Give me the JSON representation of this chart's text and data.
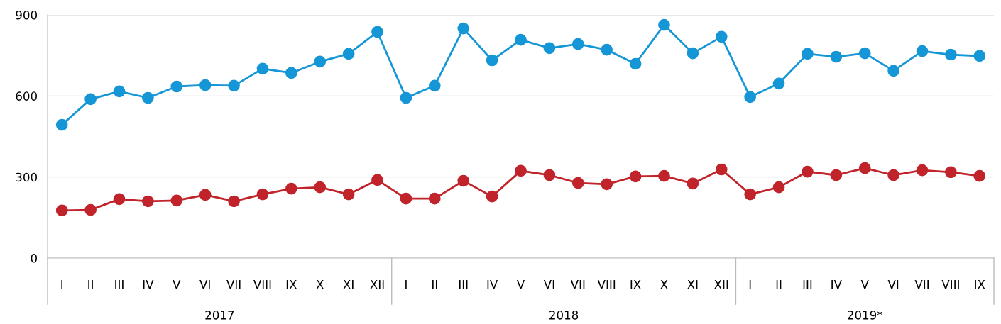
{
  "chart_data": {
    "type": "line",
    "categories": [
      "I",
      "II",
      "III",
      "IV",
      "V",
      "VI",
      "VII",
      "VIII",
      "IX",
      "X",
      "XI",
      "XII",
      "I",
      "II",
      "III",
      "IV",
      "V",
      "VI",
      "VII",
      "VIII",
      "IX",
      "X",
      "XI",
      "XII",
      "I",
      "II",
      "III",
      "IV",
      "V",
      "VI",
      "VII",
      "VIII",
      "IX"
    ],
    "series": [
      {
        "color": "#1596d6",
        "values": [
          493,
          588,
          617,
          593,
          635,
          640,
          638,
          701,
          685,
          727,
          756,
          837,
          593,
          638,
          850,
          732,
          808,
          777,
          792,
          771,
          719,
          863,
          758,
          819,
          596,
          646,
          756,
          745,
          758,
          693,
          766,
          753,
          748
        ]
      },
      {
        "color": "#c1232b",
        "values": [
          176,
          178,
          218,
          210,
          213,
          234,
          210,
          236,
          257,
          262,
          236,
          289,
          220,
          220,
          286,
          228,
          323,
          307,
          278,
          273,
          302,
          304,
          276,
          328,
          236,
          262,
          320,
          307,
          333,
          307,
          325,
          318,
          304
        ]
      }
    ],
    "ylim": [
      0,
      900
    ],
    "yticks": [
      0,
      300,
      600,
      900
    ],
    "grid": "y",
    "marker": "circle",
    "line_style": "solid",
    "annotations": [
      "2017",
      "2018",
      "2019*"
    ]
  }
}
